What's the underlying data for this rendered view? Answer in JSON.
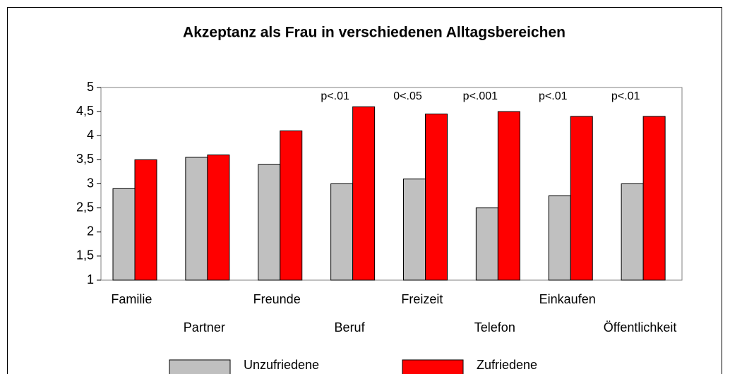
{
  "chart_data": {
    "type": "bar",
    "title": "Akzeptanz als Frau in verschiedenen Alltagsbereichen",
    "categories": [
      "Familie",
      "Partner",
      "Freunde",
      "Beruf",
      "Freizeit",
      "Telefon",
      "Einkaufen",
      "Öffentlichkeit"
    ],
    "series": [
      {
        "name": "Unzufriedene",
        "color": "#c0c0c0",
        "values": [
          2.9,
          3.55,
          3.4,
          3.0,
          3.1,
          2.5,
          2.75,
          3.0
        ]
      },
      {
        "name": "Zufriedene",
        "color": "#ff0000",
        "values": [
          3.5,
          3.6,
          4.1,
          4.6,
          4.45,
          4.5,
          4.4,
          4.4
        ]
      }
    ],
    "annotations": [
      null,
      null,
      null,
      "p<.01",
      "0<.05",
      "p<.001",
      "p<.01",
      "p<.01"
    ],
    "ylim": [
      1,
      5
    ],
    "yticks": [
      1,
      {
        "value": 1.5,
        "label": "1,5"
      },
      2,
      {
        "value": 2.5,
        "label": "2,5"
      },
      3,
      {
        "value": 3.5,
        "label": "3,5"
      },
      4,
      {
        "value": 4.5,
        "label": "4,5"
      },
      5
    ]
  }
}
